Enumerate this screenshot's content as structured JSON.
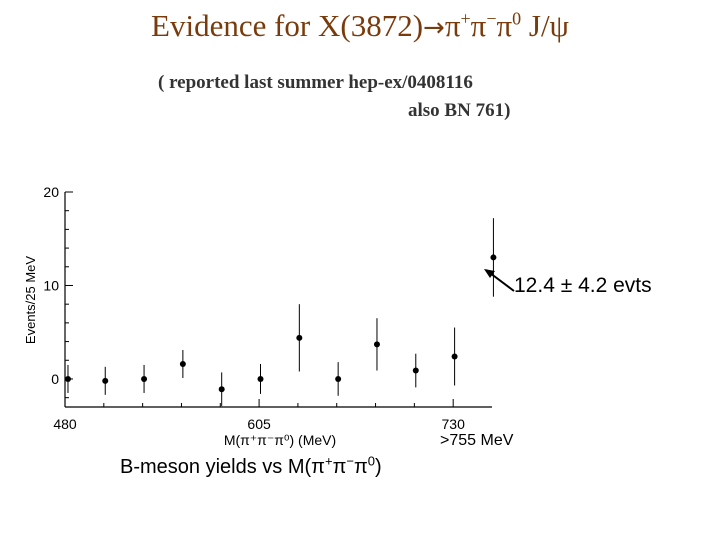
{
  "header": {
    "title_prefix": "Evidence for X(3872)",
    "title_arrow": "→",
    "title_pi1": "π",
    "title_sup1": "+",
    "title_pi2": "π",
    "title_sup2": "−",
    "title_pi3": "π",
    "title_sup3": "0",
    "title_suffix": " J/ψ",
    "subtitle_line1": "( reported last summer hep-ex/0408116",
    "subtitle_line2": "also BN 761)"
  },
  "annotation": "12.4 ± 4.2 evts",
  "range_label": ">755  MeV",
  "caption": {
    "prefix": "B-meson yields vs M(",
    "pi1": "π",
    "sup1": "+",
    "pi2": "π",
    "sup2": "−",
    "pi3": "π",
    "sup3": "0",
    "suffix": ")"
  },
  "colors": {
    "title": "#7a3b0c",
    "subtitle": "#333333",
    "axis": "#000000",
    "point": "#000000"
  },
  "chart_data": {
    "type": "scatter",
    "xlabel": "M(π⁺π⁻π⁰) (MeV)",
    "ylabel": "Events/25 MeV",
    "xlim": [
      480,
      755
    ],
    "ylim": [
      -3,
      20
    ],
    "xticks": [
      480,
      605,
      730
    ],
    "yticks": [
      0,
      10,
      20
    ],
    "grid": false,
    "series": [
      {
        "x": [
          489,
          513,
          538,
          563,
          588,
          613,
          638,
          663,
          688,
          713,
          738,
          763
        ],
        "y": [
          0,
          -0.2,
          0,
          1.6,
          -1.1,
          0,
          4.4,
          0,
          3.7,
          0.9,
          2.4,
          13.0
        ],
        "err_low": [
          1.5,
          1.5,
          1.5,
          1.5,
          1.8,
          1.6,
          3.6,
          1.8,
          2.8,
          1.8,
          3.1,
          4.2
        ],
        "err_high": [
          1.5,
          1.5,
          1.5,
          1.5,
          1.8,
          1.6,
          3.6,
          1.8,
          2.8,
          1.8,
          3.1,
          4.2
        ]
      }
    ]
  }
}
